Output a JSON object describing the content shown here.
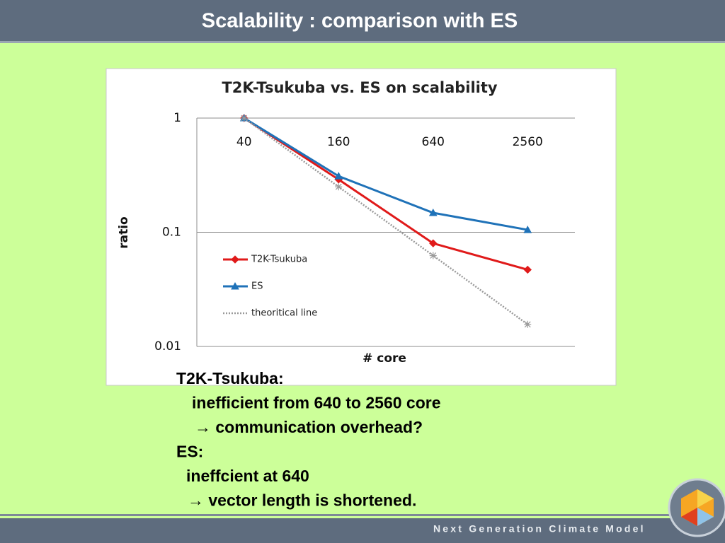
{
  "slide_title": "Scalability : comparison with ES",
  "chart_data": {
    "type": "line",
    "title": "T2K-Tsukuba vs. ES on scalability",
    "x_label": "# core",
    "y_label": "ratio",
    "categories": [
      "40",
      "160",
      "640",
      "2560"
    ],
    "series": [
      {
        "name": "T2K-Tsukuba",
        "color": "#e01a1a",
        "marker": "diamond",
        "dash": "solid",
        "values": [
          1,
          0.29,
          0.08,
          0.047
        ]
      },
      {
        "name": "ES",
        "color": "#1f72b8",
        "marker": "triangle",
        "dash": "solid",
        "values": [
          1,
          0.31,
          0.148,
          0.105
        ]
      },
      {
        "name": "theoritical line",
        "color": "#9a9a9a",
        "marker": "asterisk",
        "dash": "dotted",
        "values": [
          1,
          0.25,
          0.0625,
          0.0156
        ]
      }
    ],
    "ylim": [
      0.01,
      1
    ],
    "yticks": [
      1,
      0.1,
      0.01
    ],
    "log_y": true,
    "grid": true,
    "legend": "left"
  },
  "notes": [
    "T2K-Tsukuba:",
    "inefficient from 640 to 2560 core",
    "→ communication overhead?",
    "ES:",
    "ineffcient at 640",
    "→ vector length is shortened."
  ],
  "footer": "Next Generation Climate Model"
}
